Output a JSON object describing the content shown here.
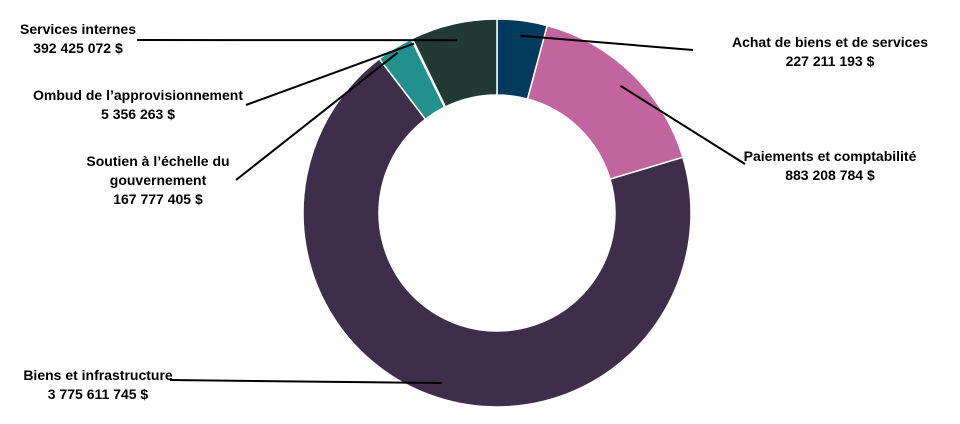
{
  "chart_data": {
    "type": "pie",
    "donut": true,
    "title": "",
    "unit": "$",
    "slices": [
      {
        "name": "Achat de biens et de services",
        "value": 227211193,
        "display": "227 211 193 $",
        "color": "#003A5D",
        "label_lines": [
          "Achat de biens et de services"
        ]
      },
      {
        "name": "Paiements et comptabilité",
        "value": 883208784,
        "display": "883 208 784 $",
        "color": "#C2649E",
        "label_lines": [
          "Paiements et comptabilité"
        ]
      },
      {
        "name": "Biens et infrastructure",
        "value": 3775611745,
        "display": "3 775 611 745 $",
        "color": "#3F2D4C",
        "label_lines": [
          "Biens et infrastructure"
        ]
      },
      {
        "name": "Soutien à l’échelle du gouvernement",
        "value": 167777405,
        "display": "167 777 405 $",
        "color": "#22918E",
        "label_lines": [
          "Soutien à l’échelle du",
          "gouvernement"
        ]
      },
      {
        "name": "Ombud de l’approvisionnement",
        "value": 5356263,
        "display": "5 356 263 $",
        "color": "#4A8C8C",
        "label_lines": [
          "Ombud de l’approvisionnement"
        ]
      },
      {
        "name": "Services internes",
        "value": 392425072,
        "display": "392 425 072 $",
        "color": "#223A35",
        "label_lines": [
          "Services internes"
        ]
      }
    ]
  }
}
